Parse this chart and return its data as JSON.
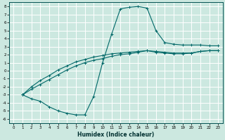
{
  "xlabel": "Humidex (Indice chaleur)",
  "bg_color": "#cce8e0",
  "grid_color": "#ffffff",
  "line_color": "#006868",
  "xlim": [
    -0.5,
    23.5
  ],
  "ylim": [
    -6.5,
    8.5
  ],
  "xticks": [
    0,
    1,
    2,
    3,
    4,
    5,
    6,
    7,
    8,
    9,
    10,
    11,
    12,
    13,
    14,
    15,
    16,
    17,
    18,
    19,
    20,
    21,
    22,
    23
  ],
  "yticks": [
    8,
    7,
    6,
    5,
    4,
    3,
    2,
    1,
    0,
    -1,
    -2,
    -3,
    -4,
    -5,
    -6
  ],
  "curve1_x": [
    1,
    2,
    3,
    4,
    5,
    6,
    7,
    8,
    9,
    10,
    11,
    12,
    13,
    14,
    15,
    16,
    17,
    18,
    19,
    20,
    21,
    22,
    23
  ],
  "curve1_y": [
    -3,
    -3.5,
    -3.8,
    -4.5,
    -5.0,
    -5.3,
    -5.5,
    -5.5,
    -3.2,
    1.0,
    4.5,
    7.7,
    7.9,
    8.0,
    7.8,
    5.0,
    3.5,
    3.3,
    3.2,
    3.2,
    3.2,
    3.1,
    3.1
  ],
  "curve2_x": [
    1,
    2,
    3,
    4,
    5,
    6,
    7,
    8,
    9,
    10,
    11,
    12,
    13,
    14,
    15,
    16,
    17,
    18,
    19,
    20,
    21,
    22,
    23
  ],
  "curve2_y": [
    -3,
    -2.3,
    -1.7,
    -1.1,
    -0.5,
    0.1,
    0.6,
    1.0,
    1.3,
    1.5,
    1.8,
    2.0,
    2.1,
    2.3,
    2.5,
    2.3,
    2.2,
    2.1,
    2.1,
    2.2,
    2.4,
    2.5,
    2.5
  ],
  "curve3_x": [
    1,
    2,
    3,
    4,
    5,
    6,
    7,
    8,
    9,
    10,
    11,
    12,
    13,
    14,
    15,
    16,
    17,
    18,
    19,
    20,
    21,
    22,
    23
  ],
  "curve3_y": [
    -3,
    -2.0,
    -1.2,
    -0.6,
    0.1,
    0.6,
    1.1,
    1.4,
    1.7,
    1.9,
    2.1,
    2.2,
    2.3,
    2.4,
    2.5,
    2.4,
    2.3,
    2.2,
    2.2,
    2.2,
    2.4,
    2.5,
    2.5
  ]
}
